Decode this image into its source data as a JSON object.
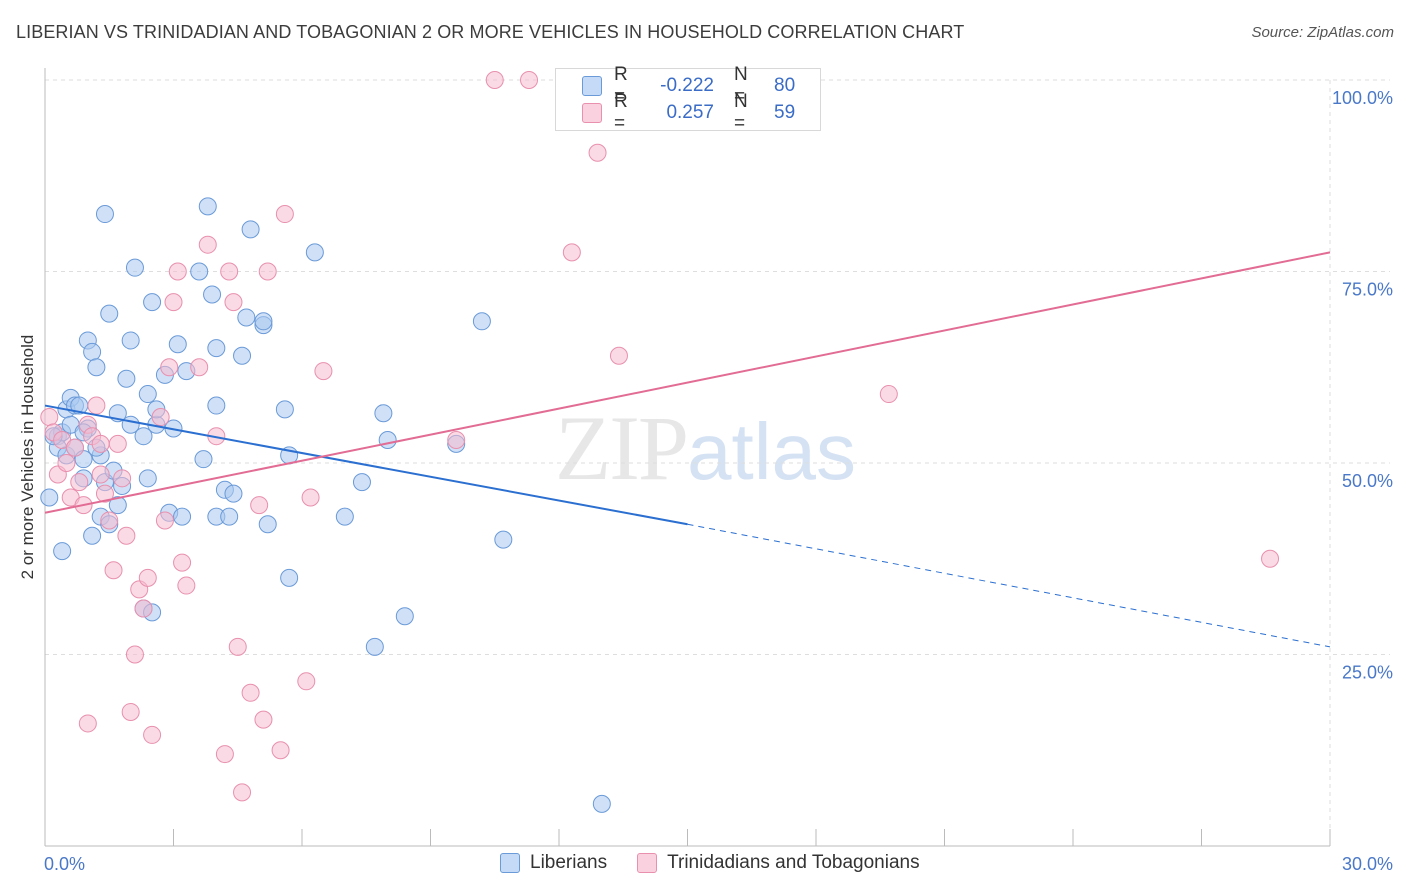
{
  "header": {
    "title": "LIBERIAN VS TRINIDADIAN AND TOBAGONIAN 2 OR MORE VEHICLES IN HOUSEHOLD CORRELATION CHART",
    "source": "Source: ZipAtlas.com"
  },
  "watermark": {
    "zip": "ZIP",
    "atlas": "atlas"
  },
  "legend": {
    "rows": [
      {
        "r_label": "R =",
        "r_value": "-0.222",
        "n_label": "N =",
        "n_value": "80",
        "color": "#a9c8f0"
      },
      {
        "r_label": "R =",
        "r_value": "0.257",
        "n_label": "N =",
        "n_value": "59",
        "color": "#f6bcd0"
      }
    ]
  },
  "bottom_legend": {
    "items": [
      {
        "label": "Liberians",
        "color": "#a9c8f0"
      },
      {
        "label": "Trinidadians and Tobagonians",
        "color": "#f6bcd0"
      }
    ]
  },
  "chart_data": {
    "type": "scatter",
    "title": "LIBERIAN VS TRINIDADIAN AND TOBAGONIAN 2 OR MORE VEHICLES IN HOUSEHOLD CORRELATION CHART",
    "xlabel": "",
    "ylabel": "2 or more Vehicles in Household",
    "xlim": [
      0,
      30
    ],
    "ylim": [
      0,
      100
    ],
    "x_ticks": [
      "0.0%",
      "30.0%"
    ],
    "y_ticks": [
      {
        "value": 100,
        "label": "100.0%"
      },
      {
        "value": 75,
        "label": "75.0%"
      },
      {
        "value": 50,
        "label": "50.0%"
      },
      {
        "value": 25,
        "label": "25.0%"
      }
    ],
    "grid": true,
    "legend_position": "top-center",
    "series": [
      {
        "name": "Liberians",
        "color": "#a9c8f0",
        "stroke": "#6a9ad8",
        "trend": {
          "x0": 0,
          "y0": 57.5,
          "x1": 15,
          "y1": 42,
          "dash_to_x": 30,
          "dash_to_y": 26,
          "color": "#2b6fd1"
        },
        "points": [
          [
            0.1,
            45.5
          ],
          [
            0.3,
            53.5
          ],
          [
            0.3,
            52
          ],
          [
            0.4,
            54
          ],
          [
            0.4,
            38.5
          ],
          [
            0.5,
            57
          ],
          [
            0.5,
            51
          ],
          [
            0.6,
            58.5
          ],
          [
            0.6,
            55
          ],
          [
            0.7,
            52
          ],
          [
            0.7,
            57.5
          ],
          [
            0.8,
            57.5
          ],
          [
            0.9,
            48
          ],
          [
            0.9,
            50.5
          ],
          [
            1.0,
            66
          ],
          [
            1.0,
            54.5
          ],
          [
            1.1,
            64.5
          ],
          [
            1.1,
            40.5
          ],
          [
            1.2,
            62.5
          ],
          [
            1.3,
            43
          ],
          [
            1.3,
            51
          ],
          [
            1.4,
            47.5
          ],
          [
            1.4,
            82.5
          ],
          [
            1.5,
            69.5
          ],
          [
            1.5,
            42
          ],
          [
            1.6,
            49
          ],
          [
            1.7,
            56.5
          ],
          [
            1.7,
            44.5
          ],
          [
            1.8,
            47
          ],
          [
            1.9,
            61
          ],
          [
            2.0,
            66
          ],
          [
            2.0,
            55
          ],
          [
            2.1,
            75.5
          ],
          [
            2.3,
            53.5
          ],
          [
            2.3,
            31
          ],
          [
            2.4,
            48
          ],
          [
            2.4,
            59
          ],
          [
            2.5,
            71
          ],
          [
            2.5,
            30.5
          ],
          [
            2.6,
            55
          ],
          [
            2.8,
            61.5
          ],
          [
            2.9,
            43.5
          ],
          [
            3.0,
            54.5
          ],
          [
            3.1,
            65.5
          ],
          [
            3.2,
            43
          ],
          [
            3.3,
            62
          ],
          [
            3.6,
            75
          ],
          [
            3.7,
            50.5
          ],
          [
            3.8,
            83.5
          ],
          [
            3.9,
            72
          ],
          [
            4.0,
            57.5
          ],
          [
            4.0,
            43
          ],
          [
            4.0,
            65
          ],
          [
            4.2,
            46.5
          ],
          [
            4.3,
            43
          ],
          [
            4.4,
            46
          ],
          [
            4.6,
            64
          ],
          [
            4.7,
            69
          ],
          [
            4.8,
            80.5
          ],
          [
            5.1,
            68
          ],
          [
            5.1,
            68.5
          ],
          [
            5.2,
            42
          ],
          [
            5.6,
            57
          ],
          [
            5.7,
            35
          ],
          [
            5.7,
            51
          ],
          [
            6.3,
            77.5
          ],
          [
            7.0,
            43
          ],
          [
            7.4,
            47.5
          ],
          [
            7.7,
            26
          ],
          [
            7.9,
            56.5
          ],
          [
            8.0,
            53
          ],
          [
            8.4,
            30
          ],
          [
            9.6,
            52.5
          ],
          [
            10.2,
            68.5
          ],
          [
            10.7,
            40
          ],
          [
            13.0,
            5.5
          ],
          [
            0.2,
            53.5
          ],
          [
            0.9,
            54
          ],
          [
            1.2,
            52
          ],
          [
            2.6,
            57
          ]
        ]
      },
      {
        "name": "Trinidadians and Tobagonians",
        "color": "#f6bcd0",
        "stroke": "#e890ae",
        "trend": {
          "x0": 0,
          "y0": 43.5,
          "x1": 30,
          "y1": 77.5,
          "color": "#e26c94"
        },
        "points": [
          [
            0.1,
            56
          ],
          [
            0.2,
            54
          ],
          [
            0.3,
            48.5
          ],
          [
            0.4,
            53
          ],
          [
            0.5,
            50
          ],
          [
            0.6,
            45.5
          ],
          [
            0.7,
            52
          ],
          [
            0.8,
            47.5
          ],
          [
            0.9,
            44.5
          ],
          [
            1.0,
            55
          ],
          [
            1.1,
            53.5
          ],
          [
            1.2,
            57.5
          ],
          [
            1.3,
            52.5
          ],
          [
            1.3,
            48.5
          ],
          [
            1.4,
            46
          ],
          [
            1.5,
            42.5
          ],
          [
            1.6,
            36
          ],
          [
            1.7,
            52.5
          ],
          [
            1.8,
            48
          ],
          [
            1.9,
            40.5
          ],
          [
            2.0,
            17.5
          ],
          [
            2.1,
            25
          ],
          [
            2.2,
            33.5
          ],
          [
            2.3,
            31
          ],
          [
            2.4,
            35
          ],
          [
            2.5,
            14.5
          ],
          [
            2.7,
            56
          ],
          [
            2.8,
            42.5
          ],
          [
            2.9,
            62.5
          ],
          [
            3.0,
            71
          ],
          [
            3.1,
            75
          ],
          [
            3.2,
            37
          ],
          [
            3.3,
            34
          ],
          [
            3.6,
            62.5
          ],
          [
            3.8,
            78.5
          ],
          [
            4.0,
            53.5
          ],
          [
            4.2,
            12
          ],
          [
            4.3,
            75
          ],
          [
            4.4,
            71
          ],
          [
            4.5,
            26
          ],
          [
            4.6,
            7
          ],
          [
            4.8,
            20
          ],
          [
            5.0,
            44.5
          ],
          [
            5.1,
            16.5
          ],
          [
            5.2,
            75
          ],
          [
            5.5,
            12.5
          ],
          [
            5.6,
            82.5
          ],
          [
            6.1,
            21.5
          ],
          [
            6.2,
            45.5
          ],
          [
            6.5,
            62
          ],
          [
            9.6,
            53
          ],
          [
            10.5,
            100
          ],
          [
            11.3,
            100
          ],
          [
            12.9,
            90.5
          ],
          [
            13.4,
            64
          ],
          [
            19.7,
            59
          ],
          [
            28.6,
            37.5
          ],
          [
            12.3,
            77.5
          ],
          [
            1.0,
            16
          ]
        ]
      }
    ]
  }
}
